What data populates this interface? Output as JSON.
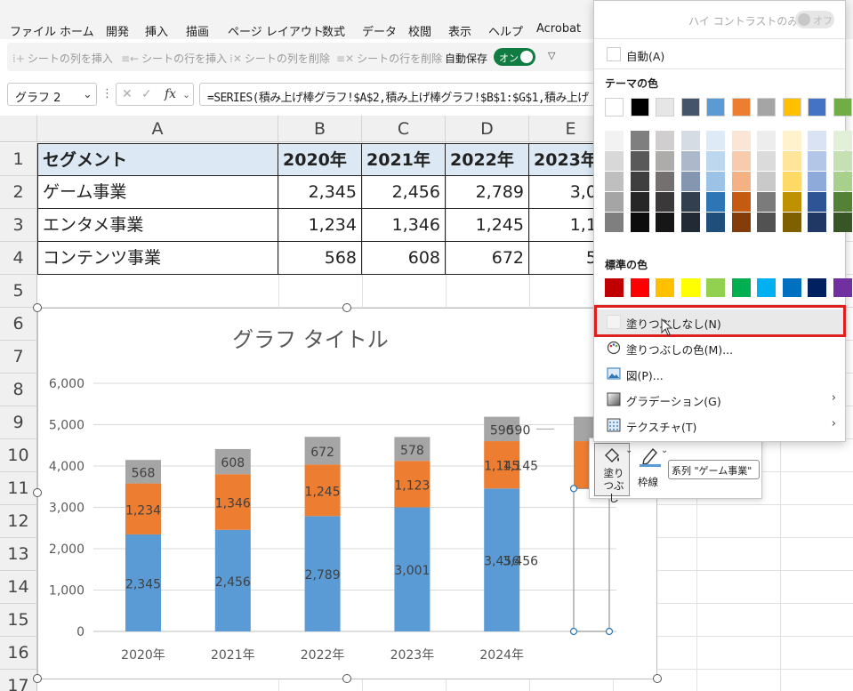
{
  "menu": [
    "ファイル",
    "ホーム",
    "開発",
    "挿入",
    "描画",
    "ページ レイアウト",
    "数式",
    "データ",
    "校閲",
    "表示",
    "ヘルプ",
    "Acrobat"
  ],
  "toolbar": {
    "items": [
      "シートの列を挿入",
      "シートの行を挿入",
      "シートの列を削除",
      "シートの行を削除"
    ],
    "autosave_label": "自動保存",
    "autosave_state": "オン",
    "more_glyph": "▽"
  },
  "formula_bar": {
    "name_box": "グラフ 2",
    "separator": "⋮",
    "cancel_glyph": "✕",
    "confirm_glyph": "✓",
    "fx_glyph": "fx",
    "formula": "=SERIES(積み上げ棒グラフ!$A$2,積み上げ棒グラフ!$B$1:$G$1,積み上げ"
  },
  "sheet": {
    "columns": [
      "A",
      "B",
      "C",
      "D",
      "E"
    ],
    "rows": [
      "1",
      "2",
      "3",
      "4",
      "5",
      "6",
      "7",
      "8",
      "9",
      "10",
      "11",
      "12",
      "13",
      "14",
      "15",
      "16",
      "17"
    ],
    "header": [
      "セグメント",
      "2020年",
      "2021年",
      "2022年",
      "2023年"
    ],
    "data": [
      [
        "ゲーム事業",
        "2,345",
        "2,456",
        "2,789",
        "3,00"
      ],
      [
        "エンタメ事業",
        "1,234",
        "1,346",
        "1,245",
        "1,12"
      ],
      [
        "コンテンツ事業",
        "568",
        "608",
        "672",
        "57"
      ]
    ]
  },
  "chart_data": {
    "type": "bar",
    "stacked": true,
    "title": "グラフ タイトル",
    "categories": [
      "2020年",
      "2021年",
      "2022年",
      "2023年",
      "2024年"
    ],
    "series": [
      {
        "name": "ゲーム事業",
        "values": [
          2345,
          2456,
          2789,
          3001,
          3456
        ],
        "color": "#5b9bd5"
      },
      {
        "name": "エンタメ事業",
        "values": [
          1234,
          1346,
          1245,
          1123,
          1145
        ],
        "color": "#ed7d31"
      },
      {
        "name": "コンテンツ事業",
        "values": [
          568,
          608,
          672,
          578,
          590
        ],
        "color": "#a5a5a5"
      }
    ],
    "ylim": [
      0,
      6000
    ],
    "yticks": [
      "0",
      "1,000",
      "2,000",
      "3,000",
      "4,000",
      "5,000",
      "6,000"
    ],
    "grid": true,
    "legend": "none",
    "outer_labels": [
      "590",
      "1,145",
      "3,456"
    ]
  },
  "mini_toolbar": {
    "fill_label": "塗りつぶし",
    "outline_label": "枠線",
    "series_select": "系列 \"ゲーム事業\""
  },
  "color_menu": {
    "high_contrast": "ハイ コントラストのみ(H)",
    "high_contrast_state": "オフ",
    "auto": "自動(A)",
    "theme_title": "テーマの色",
    "theme_colors": [
      "#ffffff",
      "#000000",
      "#e7e6e6",
      "#44546a",
      "#5b9bd5",
      "#ed7d31",
      "#a5a5a5",
      "#ffc000",
      "#4472c4",
      "#70ad47"
    ],
    "shade_colors": [
      [
        "#f2f2f2",
        "#7f7f7f",
        "#d0cece",
        "#d6dce4",
        "#deebf6",
        "#fbe5d5",
        "#ededed",
        "#fff2cc",
        "#dae3f3",
        "#e2efd9"
      ],
      [
        "#d8d8d8",
        "#595959",
        "#aeabab",
        "#adb9ca",
        "#bdd7ee",
        "#f7cbac",
        "#dbdbdb",
        "#fee599",
        "#b4c6e7",
        "#c5e0b3"
      ],
      [
        "#bfbfbf",
        "#3f3f3f",
        "#757070",
        "#8496b0",
        "#9cc3e5",
        "#f4b183",
        "#c9c9c9",
        "#ffd965",
        "#8eaadb",
        "#a8d08d"
      ],
      [
        "#a5a5a5",
        "#262626",
        "#3a3838",
        "#323f4f",
        "#2e75b5",
        "#c55a11",
        "#7b7b7b",
        "#bf9000",
        "#2f5496",
        "#538135"
      ],
      [
        "#7f7f7f",
        "#0c0c0c",
        "#171616",
        "#222a35",
        "#1e4e79",
        "#843c0b",
        "#525252",
        "#7f6000",
        "#1f3864",
        "#375623"
      ]
    ],
    "standard_title": "標準の色",
    "standard_colors": [
      "#c00000",
      "#ff0000",
      "#ffc000",
      "#ffff00",
      "#92d050",
      "#00b050",
      "#00b0f0",
      "#0070c0",
      "#002060",
      "#7030a0"
    ],
    "items": [
      "塗りつぶしなし(N)",
      "塗りつぶしの色(M)...",
      "図(P)...",
      "グラデーション(G)",
      "テクスチャ(T)"
    ]
  }
}
